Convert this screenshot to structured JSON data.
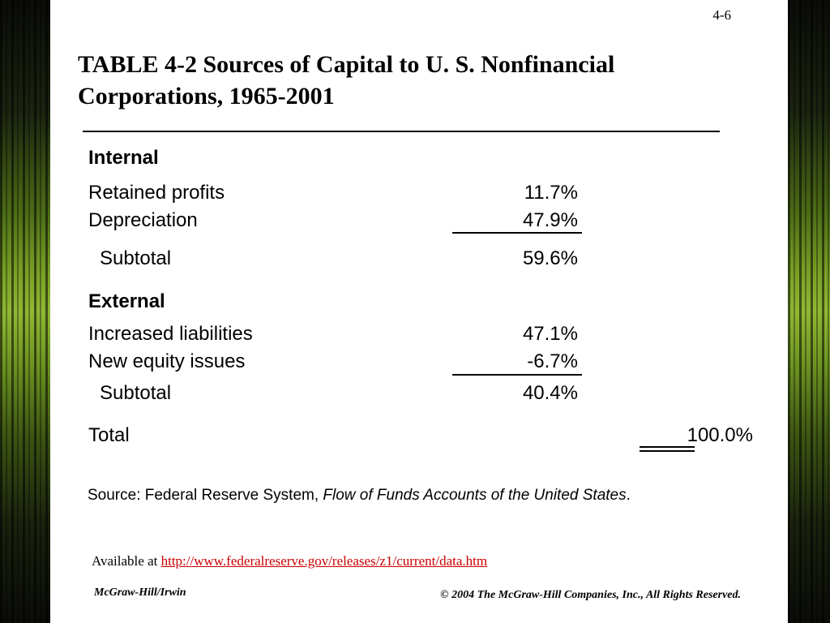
{
  "slide": {
    "number": "4-6",
    "title_line1": "TABLE 4-2 Sources of Capital to U. S. Nonfinancial",
    "title_line2": "Corporations, 1965-2001"
  },
  "table": {
    "internal_header": "Internal",
    "rows_internal": [
      {
        "label": "Retained profits",
        "value": "11.7%"
      },
      {
        "label": "Depreciation",
        "value": "47.9%"
      }
    ],
    "internal_subtotal": {
      "label": "Subtotal",
      "value": "59.6%"
    },
    "external_header": "External",
    "rows_external": [
      {
        "label": "Increased liabilities",
        "value": "47.1%"
      },
      {
        "label": "New equity issues",
        "value": "-6.7%"
      }
    ],
    "external_subtotal": {
      "label": "Subtotal",
      "value": "40.4%"
    },
    "total": {
      "label": "Total",
      "value_main": "100.0",
      "value_suffix": "%"
    }
  },
  "source": {
    "prefix": "Source: Federal Reserve System, ",
    "italic": "Flow of Funds Accounts of the United States",
    "suffix": "."
  },
  "availability": {
    "prefix": "Available at ",
    "url": "http://www.federalreserve.gov/releases/z1/current/data.htm"
  },
  "footer": {
    "publisher": "McGraw-Hill/Irwin",
    "copyright": "© 2004 The McGraw-Hill Companies, Inc., All Rights Reserved."
  },
  "colors": {
    "link": "#cc0000",
    "background_accent": "#7aa126"
  }
}
